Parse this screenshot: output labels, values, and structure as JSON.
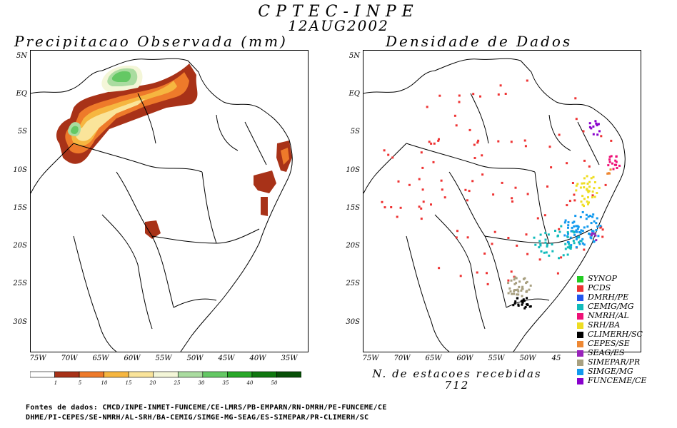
{
  "header": {
    "title": "CPTEC-INPE",
    "date": "12AUG2002"
  },
  "left_panel": {
    "title": "Precipitacao Observada (mm)",
    "lat_labels": [
      "5N",
      "EQ",
      "5S",
      "10S",
      "15S",
      "20S",
      "25S",
      "30S"
    ],
    "lon_labels": [
      "75W",
      "70W",
      "65W",
      "60W",
      "55W",
      "50W",
      "45W",
      "40W",
      "35W"
    ]
  },
  "right_panel": {
    "title": "Densidade de Dados",
    "lat_labels": [
      "5N",
      "EQ",
      "5S",
      "10S",
      "15S",
      "20S",
      "25S",
      "30S"
    ],
    "lon_labels": [
      "75W",
      "70W",
      "65W",
      "60W",
      "55W",
      "50W",
      "45"
    ],
    "count_label": "N. de estacoes recebidas",
    "count_value": "712"
  },
  "colorbar": {
    "labels": [
      "1",
      "5",
      "10",
      "15",
      "20",
      "25",
      "30",
      "35",
      "40",
      "50"
    ],
    "colors": [
      "#ffffff",
      "#a83218",
      "#ee7a2a",
      "#f6b640",
      "#fae49a",
      "#f4f6d8",
      "#aadca0",
      "#64c864",
      "#28a828",
      "#107810",
      "#085008"
    ]
  },
  "legend": [
    {
      "name": "SYNOP",
      "color": "#22cc22"
    },
    {
      "name": "PCDS",
      "color": "#ee3333"
    },
    {
      "name": "DMRH/PE",
      "color": "#2255ee"
    },
    {
      "name": "CEMIG/MG",
      "color": "#11bbbb"
    },
    {
      "name": "NMRH/AL",
      "color": "#ee1177"
    },
    {
      "name": "SRH/BA",
      "color": "#eedd22"
    },
    {
      "name": "CLIMERH/SC",
      "color": "#000000"
    },
    {
      "name": "CEPES/SE",
      "color": "#ee8833"
    },
    {
      "name": "SEAG/ES",
      "color": "#9922bb"
    },
    {
      "name": "SIMEPAR/PR",
      "color": "#a8a080"
    },
    {
      "name": "SIMGE/MG",
      "color": "#1199ee"
    },
    {
      "name": "FUNCEME/CE",
      "color": "#8800cc"
    }
  ],
  "footer": {
    "line1": "Fontes de dados: CMCD/INPE-INMET-FUNCEME/CE-LMRS/PB-EMPARN/RN-DMRH/PE-FUNCEME/CE",
    "line2": "DHME/PI-CEPES/SE-NMRH/AL-SRH/BA-CEMIG/SIMGE-MG-SEAG/ES-SIMEPAR/PR-CLIMERH/SC"
  }
}
